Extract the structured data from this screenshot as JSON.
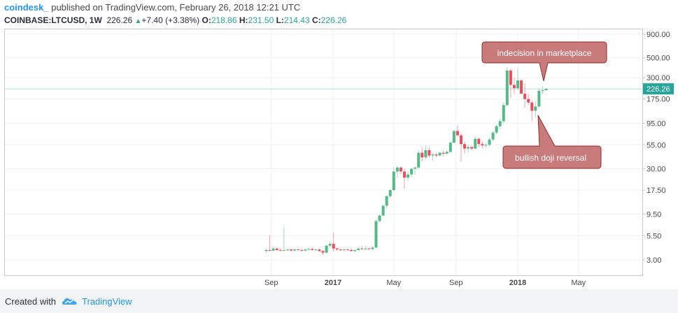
{
  "header": {
    "author": "coindesk_",
    "published": "published on TradingView.com, February 26, 2018 12:21 UTC",
    "symbol": "COINBASE:LTCUSD, 1W",
    "last": "226.26",
    "change": "+7.40 (+3.38%)",
    "o_label": "O:",
    "o_value": "218.86",
    "h_label": "H:",
    "h_value": "231.50",
    "l_label": "L:",
    "l_value": "214.43",
    "c_label": "C:",
    "c_value": "226.26"
  },
  "footer": {
    "created_with": "Created with",
    "brand": "TradingView"
  },
  "colors": {
    "up": "#26a69a",
    "up_fill": "#53b987",
    "down": "#eb4d5c",
    "accent": "#2196f3",
    "annotation_fill": "#c97a7a",
    "annotation_stroke": "#8b2e2e"
  },
  "chart_data": {
    "type": "candlestick",
    "y_scale": "log",
    "y_ticks": [
      "900.00",
      "500.00",
      "300.00",
      "175.00",
      "95.00",
      "55.00",
      "30.00",
      "17.50",
      "9.50",
      "5.50",
      "3.00"
    ],
    "x_ticks": [
      {
        "label": "Sep",
        "date": "2016-09",
        "bold": false
      },
      {
        "label": "2017",
        "date": "2017-01",
        "bold": true
      },
      {
        "label": "May",
        "date": "2017-05",
        "bold": false
      },
      {
        "label": "Sep",
        "date": "2017-09",
        "bold": false
      },
      {
        "label": "2018",
        "date": "2018-01",
        "bold": true
      },
      {
        "label": "May",
        "date": "2018-05",
        "bold": false
      }
    ],
    "last_price_label": "226.26",
    "grid": true,
    "annotations": [
      {
        "text": "indecision in marketplace",
        "position": "above"
      },
      {
        "text": "bullish doji reversal",
        "position": "below"
      }
    ],
    "candles": [
      {
        "date": "2016-08-22",
        "o": 3.75,
        "h": 4.0,
        "l": 3.6,
        "c": 3.85
      },
      {
        "date": "2016-08-29",
        "o": 3.85,
        "h": 5.6,
        "l": 3.7,
        "c": 3.8
      },
      {
        "date": "2016-09-05",
        "o": 3.8,
        "h": 4.2,
        "l": 3.7,
        "c": 4.0
      },
      {
        "date": "2016-09-12",
        "o": 4.0,
        "h": 4.1,
        "l": 3.75,
        "c": 3.85
      },
      {
        "date": "2016-09-19",
        "o": 3.85,
        "h": 4.0,
        "l": 3.7,
        "c": 3.8
      },
      {
        "date": "2016-09-26",
        "o": 3.8,
        "h": 6.9,
        "l": 3.75,
        "c": 3.85
      },
      {
        "date": "2016-10-03",
        "o": 3.85,
        "h": 4.0,
        "l": 3.75,
        "c": 3.9
      },
      {
        "date": "2016-10-10",
        "o": 3.9,
        "h": 4.0,
        "l": 3.75,
        "c": 3.8
      },
      {
        "date": "2016-10-17",
        "o": 3.8,
        "h": 4.0,
        "l": 3.7,
        "c": 3.9
      },
      {
        "date": "2016-10-24",
        "o": 3.9,
        "h": 4.0,
        "l": 3.8,
        "c": 3.85
      },
      {
        "date": "2016-10-31",
        "o": 3.85,
        "h": 4.0,
        "l": 3.7,
        "c": 3.8
      },
      {
        "date": "2016-11-07",
        "o": 3.8,
        "h": 4.0,
        "l": 3.7,
        "c": 3.9
      },
      {
        "date": "2016-11-14",
        "o": 3.9,
        "h": 4.1,
        "l": 3.8,
        "c": 3.95
      },
      {
        "date": "2016-11-21",
        "o": 3.95,
        "h": 4.1,
        "l": 3.8,
        "c": 3.85
      },
      {
        "date": "2016-11-28",
        "o": 3.85,
        "h": 4.0,
        "l": 3.75,
        "c": 3.9
      },
      {
        "date": "2016-12-05",
        "o": 3.9,
        "h": 4.0,
        "l": 3.7,
        "c": 3.75
      },
      {
        "date": "2016-12-12",
        "o": 3.75,
        "h": 3.9,
        "l": 3.4,
        "c": 3.6
      },
      {
        "date": "2016-12-19",
        "o": 3.6,
        "h": 4.4,
        "l": 3.5,
        "c": 4.3
      },
      {
        "date": "2016-12-26",
        "o": 4.3,
        "h": 4.8,
        "l": 4.1,
        "c": 4.5
      },
      {
        "date": "2017-01-02",
        "o": 4.5,
        "h": 6.0,
        "l": 3.7,
        "c": 4.0
      },
      {
        "date": "2017-01-09",
        "o": 4.0,
        "h": 4.1,
        "l": 3.8,
        "c": 3.9
      },
      {
        "date": "2017-01-16",
        "o": 3.9,
        "h": 4.0,
        "l": 3.75,
        "c": 3.85
      },
      {
        "date": "2017-01-23",
        "o": 3.85,
        "h": 4.0,
        "l": 3.75,
        "c": 3.9
      },
      {
        "date": "2017-01-30",
        "o": 3.9,
        "h": 4.0,
        "l": 3.8,
        "c": 3.85
      },
      {
        "date": "2017-02-06",
        "o": 3.85,
        "h": 4.0,
        "l": 3.7,
        "c": 3.75
      },
      {
        "date": "2017-02-13",
        "o": 3.75,
        "h": 3.9,
        "l": 3.65,
        "c": 3.85
      },
      {
        "date": "2017-02-20",
        "o": 3.85,
        "h": 4.1,
        "l": 3.8,
        "c": 4.0
      },
      {
        "date": "2017-02-27",
        "o": 4.0,
        "h": 4.3,
        "l": 3.9,
        "c": 3.95
      },
      {
        "date": "2017-03-06",
        "o": 3.95,
        "h": 4.3,
        "l": 3.8,
        "c": 4.0
      },
      {
        "date": "2017-03-13",
        "o": 4.0,
        "h": 4.1,
        "l": 3.9,
        "c": 3.95
      },
      {
        "date": "2017-03-20",
        "o": 3.95,
        "h": 4.3,
        "l": 3.8,
        "c": 4.1
      },
      {
        "date": "2017-03-27",
        "o": 4.1,
        "h": 8.3,
        "l": 4.0,
        "c": 8.0
      },
      {
        "date": "2017-04-03",
        "o": 8.0,
        "h": 9.5,
        "l": 7.8,
        "c": 9.2
      },
      {
        "date": "2017-04-10",
        "o": 9.2,
        "h": 12.0,
        "l": 9.0,
        "c": 11.8
      },
      {
        "date": "2017-04-17",
        "o": 11.8,
        "h": 15.5,
        "l": 11.0,
        "c": 15.0
      },
      {
        "date": "2017-04-24",
        "o": 15.0,
        "h": 18.0,
        "l": 14.5,
        "c": 17.5
      },
      {
        "date": "2017-05-01",
        "o": 17.5,
        "h": 31.0,
        "l": 17.0,
        "c": 28.0
      },
      {
        "date": "2017-05-08",
        "o": 28.0,
        "h": 32.0,
        "l": 24.0,
        "c": 31.0
      },
      {
        "date": "2017-05-15",
        "o": 31.0,
        "h": 32.0,
        "l": 26.0,
        "c": 28.0
      },
      {
        "date": "2017-05-22",
        "o": 28.0,
        "h": 30.0,
        "l": 18.0,
        "c": 24.0
      },
      {
        "date": "2017-05-29",
        "o": 24.0,
        "h": 28.0,
        "l": 22.0,
        "c": 26.0
      },
      {
        "date": "2017-06-05",
        "o": 26.0,
        "h": 31.0,
        "l": 24.5,
        "c": 30.0
      },
      {
        "date": "2017-06-12",
        "o": 30.0,
        "h": 32.0,
        "l": 26.0,
        "c": 31.0
      },
      {
        "date": "2017-06-19",
        "o": 31.0,
        "h": 48.0,
        "l": 30.0,
        "c": 45.0
      },
      {
        "date": "2017-06-26",
        "o": 45.0,
        "h": 52.0,
        "l": 36.0,
        "c": 40.0
      },
      {
        "date": "2017-07-03",
        "o": 40.0,
        "h": 54.0,
        "l": 38.0,
        "c": 48.0
      },
      {
        "date": "2017-07-10",
        "o": 48.0,
        "h": 52.0,
        "l": 40.0,
        "c": 42.0
      },
      {
        "date": "2017-07-17",
        "o": 42.0,
        "h": 45.0,
        "l": 37.0,
        "c": 43.0
      },
      {
        "date": "2017-07-24",
        "o": 43.0,
        "h": 45.0,
        "l": 40.0,
        "c": 42.0
      },
      {
        "date": "2017-07-31",
        "o": 42.0,
        "h": 46.0,
        "l": 41.0,
        "c": 45.0
      },
      {
        "date": "2017-08-07",
        "o": 45.0,
        "h": 48.0,
        "l": 41.0,
        "c": 44.0
      },
      {
        "date": "2017-08-14",
        "o": 44.0,
        "h": 48.0,
        "l": 43.0,
        "c": 46.0
      },
      {
        "date": "2017-08-21",
        "o": 46.0,
        "h": 60.0,
        "l": 45.0,
        "c": 58.0
      },
      {
        "date": "2017-08-28",
        "o": 58.0,
        "h": 80.0,
        "l": 57.0,
        "c": 78.0
      },
      {
        "date": "2017-09-04",
        "o": 78.0,
        "h": 90.0,
        "l": 68.0,
        "c": 70.0
      },
      {
        "date": "2017-09-11",
        "o": 70.0,
        "h": 74.0,
        "l": 36.0,
        "c": 56.0
      },
      {
        "date": "2017-09-18",
        "o": 56.0,
        "h": 60.0,
        "l": 44.0,
        "c": 50.0
      },
      {
        "date": "2017-09-25",
        "o": 50.0,
        "h": 55.0,
        "l": 45.0,
        "c": 52.0
      },
      {
        "date": "2017-10-02",
        "o": 52.0,
        "h": 54.0,
        "l": 48.0,
        "c": 50.0
      },
      {
        "date": "2017-10-09",
        "o": 50.0,
        "h": 68.0,
        "l": 49.0,
        "c": 64.0
      },
      {
        "date": "2017-10-16",
        "o": 64.0,
        "h": 66.0,
        "l": 52.0,
        "c": 56.0
      },
      {
        "date": "2017-10-23",
        "o": 56.0,
        "h": 60.0,
        "l": 50.0,
        "c": 54.0
      },
      {
        "date": "2017-10-30",
        "o": 54.0,
        "h": 58.0,
        "l": 51.0,
        "c": 55.0
      },
      {
        "date": "2017-11-06",
        "o": 55.0,
        "h": 66.0,
        "l": 52.0,
        "c": 63.0
      },
      {
        "date": "2017-11-13",
        "o": 63.0,
        "h": 78.0,
        "l": 60.0,
        "c": 75.0
      },
      {
        "date": "2017-11-20",
        "o": 75.0,
        "h": 92.0,
        "l": 72.0,
        "c": 88.0
      },
      {
        "date": "2017-11-27",
        "o": 88.0,
        "h": 106.0,
        "l": 82.0,
        "c": 100.0
      },
      {
        "date": "2017-12-04",
        "o": 100.0,
        "h": 160.0,
        "l": 95.0,
        "c": 150.0
      },
      {
        "date": "2017-12-11",
        "o": 150.0,
        "h": 390.0,
        "l": 145.0,
        "c": 360.0
      },
      {
        "date": "2017-12-18",
        "o": 360.0,
        "h": 380.0,
        "l": 180.0,
        "c": 250.0
      },
      {
        "date": "2017-12-25",
        "o": 250.0,
        "h": 300.0,
        "l": 200.0,
        "c": 230.0
      },
      {
        "date": "2018-01-01",
        "o": 230.0,
        "h": 380.0,
        "l": 220.0,
        "c": 280.0
      },
      {
        "date": "2018-01-08",
        "o": 280.0,
        "h": 290.0,
        "l": 200.0,
        "c": 200.0
      },
      {
        "date": "2018-01-15",
        "o": 200.0,
        "h": 260.0,
        "l": 140.0,
        "c": 175.0
      },
      {
        "date": "2018-01-22",
        "o": 175.0,
        "h": 200.0,
        "l": 150.0,
        "c": 160.0
      },
      {
        "date": "2018-01-29",
        "o": 160.0,
        "h": 170.0,
        "l": 100.0,
        "c": 130.0
      },
      {
        "date": "2018-02-05",
        "o": 130.0,
        "h": 165.0,
        "l": 110.0,
        "c": 145.0
      },
      {
        "date": "2018-02-12",
        "o": 145.0,
        "h": 230.0,
        "l": 140.0,
        "c": 215.0
      },
      {
        "date": "2018-02-19",
        "o": 215.0,
        "h": 240.0,
        "l": 200.0,
        "c": 218.86
      },
      {
        "date": "2018-02-26",
        "o": 218.86,
        "h": 231.5,
        "l": 214.43,
        "c": 226.26
      }
    ]
  }
}
